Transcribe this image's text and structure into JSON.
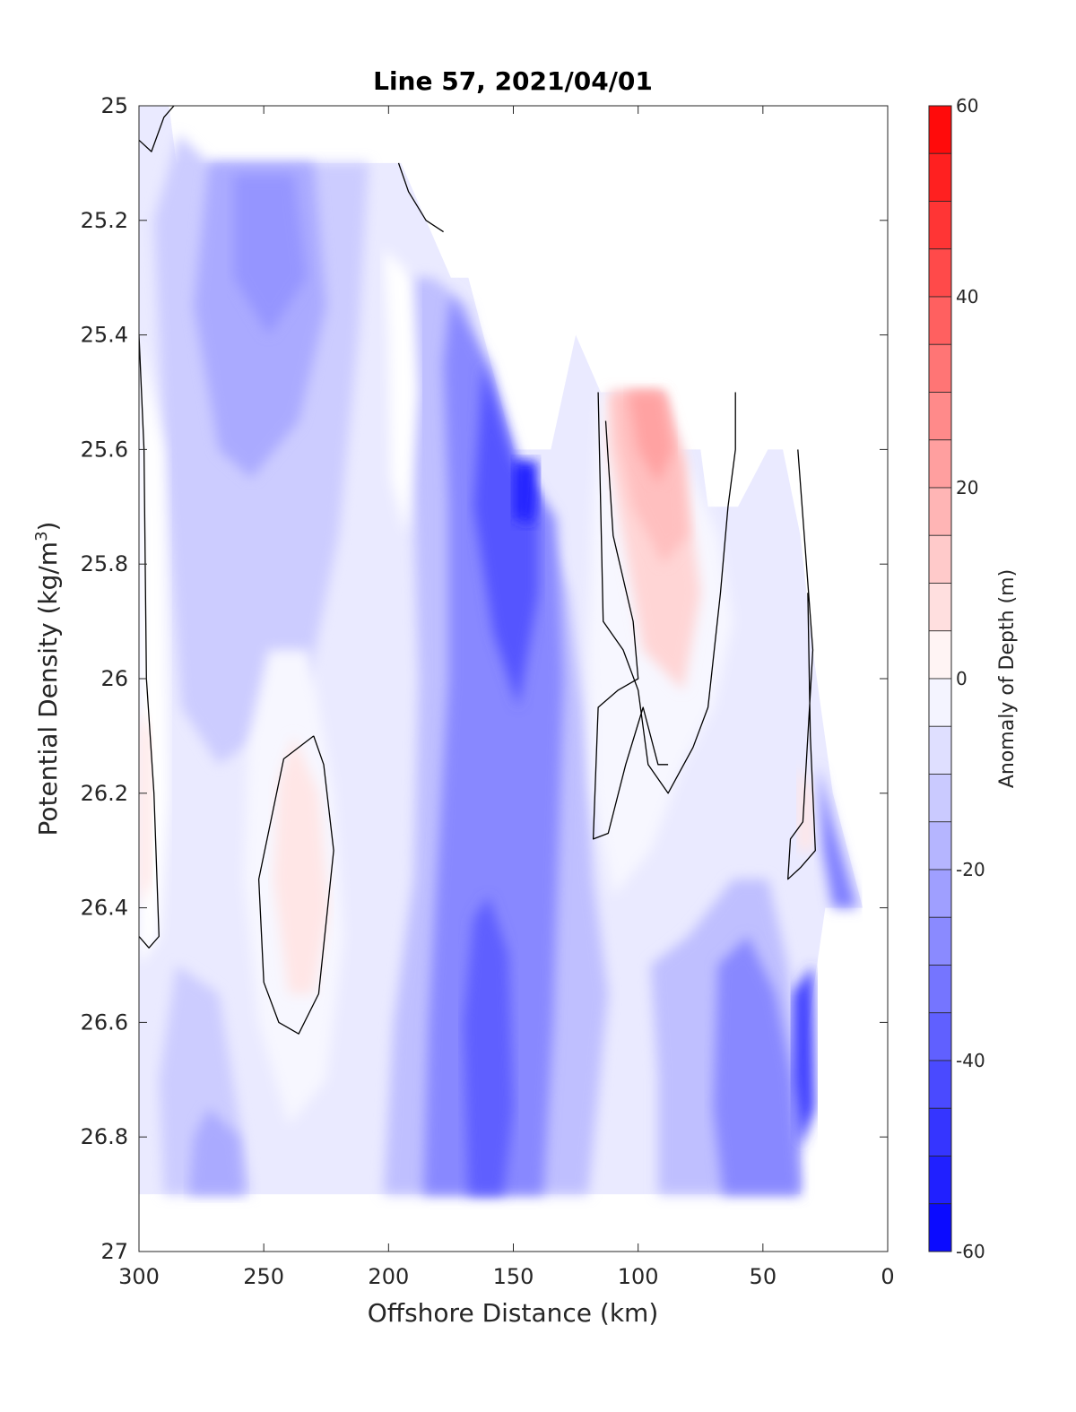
{
  "chart_data": {
    "type": "heatmap",
    "subtype": "filled-contour",
    "title": "Line 57, 2021/04/01",
    "xlabel": "Offshore Distance (km)",
    "ylabel_main": "Potential Density (kg/m",
    "ylabel_sup": "3",
    "ylabel_close": ")",
    "colorbar_label": "Anomaly of Depth (m)",
    "xlim": [
      300,
      0
    ],
    "x_reversed": true,
    "ylim": [
      25,
      27
    ],
    "y_reversed": true,
    "x_ticks": [
      300,
      250,
      200,
      150,
      100,
      50,
      0
    ],
    "y_ticks": [
      "25",
      "25.2",
      "25.4",
      "25.6",
      "25.8",
      "26",
      "26.2",
      "26.4",
      "26.6",
      "26.8",
      "27"
    ],
    "y_tick_values": [
      25,
      25.2,
      25.4,
      25.6,
      25.8,
      26,
      26.2,
      26.4,
      26.6,
      26.8,
      27
    ],
    "colorbar_range": [
      -60,
      60
    ],
    "colorbar_step": 5,
    "colorbar_ticks": [
      "60",
      "40",
      "20",
      "0",
      "-20",
      "-40",
      "-60"
    ],
    "colorbar_tick_values": [
      60,
      40,
      20,
      0,
      -20,
      -40,
      -60
    ],
    "colormap": {
      "low": "#0000ff",
      "mid": "#ffffff",
      "high": "#ff0000"
    },
    "zero_contour_color": "#000000",
    "grid": false,
    "legend": "colorbar-right"
  }
}
